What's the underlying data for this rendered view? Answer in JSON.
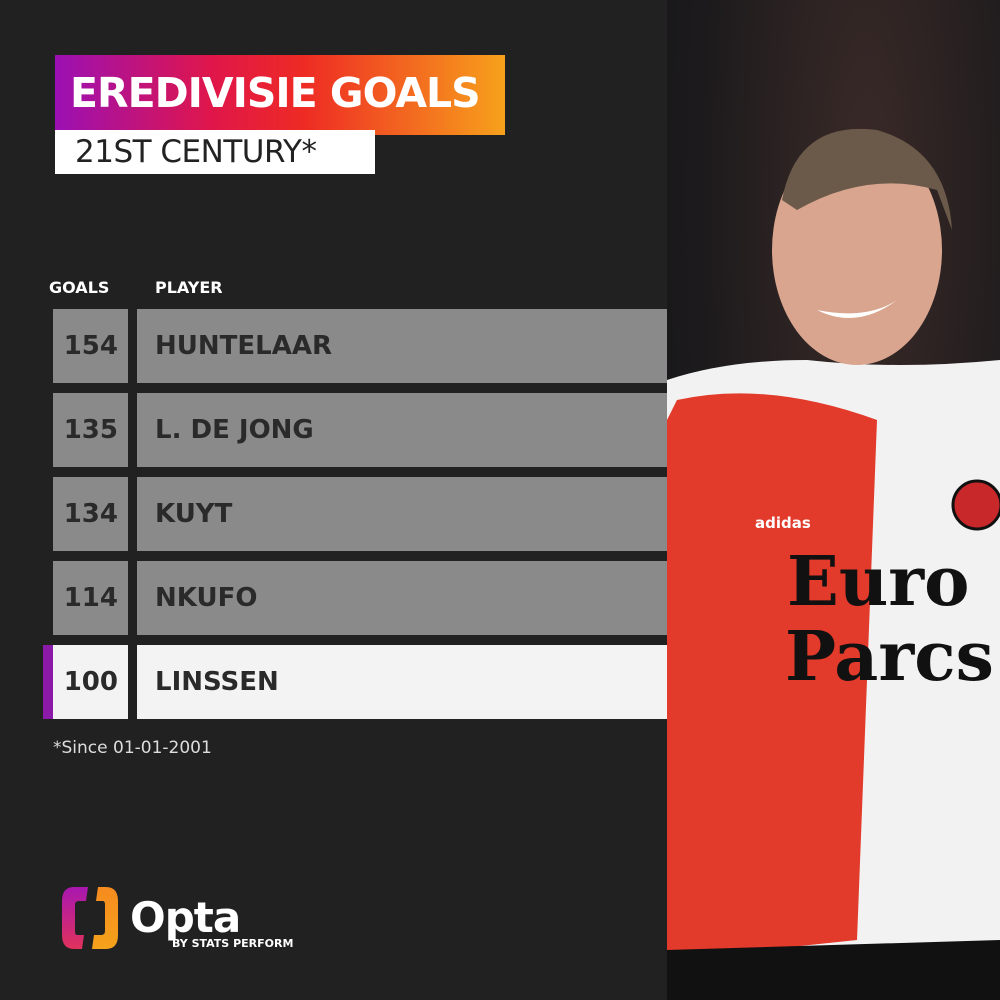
{
  "header": {
    "title": "EREDIVISIE GOALS",
    "subtitle": "21ST CENTURY*"
  },
  "chart_data": {
    "type": "table",
    "columns": [
      "GOALS",
      "PLAYER"
    ],
    "rows": [
      {
        "goals": "154",
        "player": "HUNTELAAR",
        "highlighted": false
      },
      {
        "goals": "135",
        "player": "L. DE JONG",
        "highlighted": false
      },
      {
        "goals": "134",
        "player": "KUYT",
        "highlighted": false
      },
      {
        "goals": "114",
        "player": "NKUFO",
        "highlighted": false
      },
      {
        "goals": "100",
        "player": "LINSSEN",
        "highlighted": true
      }
    ]
  },
  "footnote": "*Since 01-01-2001",
  "branding": {
    "logo": "Opta",
    "sub": "BY STATS PERFORM"
  },
  "photo": {
    "sponsor_line1": "Euro",
    "sponsor_line2": "Parcs",
    "kit_brand": "adidas"
  },
  "colors": {
    "background": "#212121",
    "row": "#8a8a8a",
    "highlight": "#f3f3f3",
    "accent": "#8c1aa8"
  }
}
